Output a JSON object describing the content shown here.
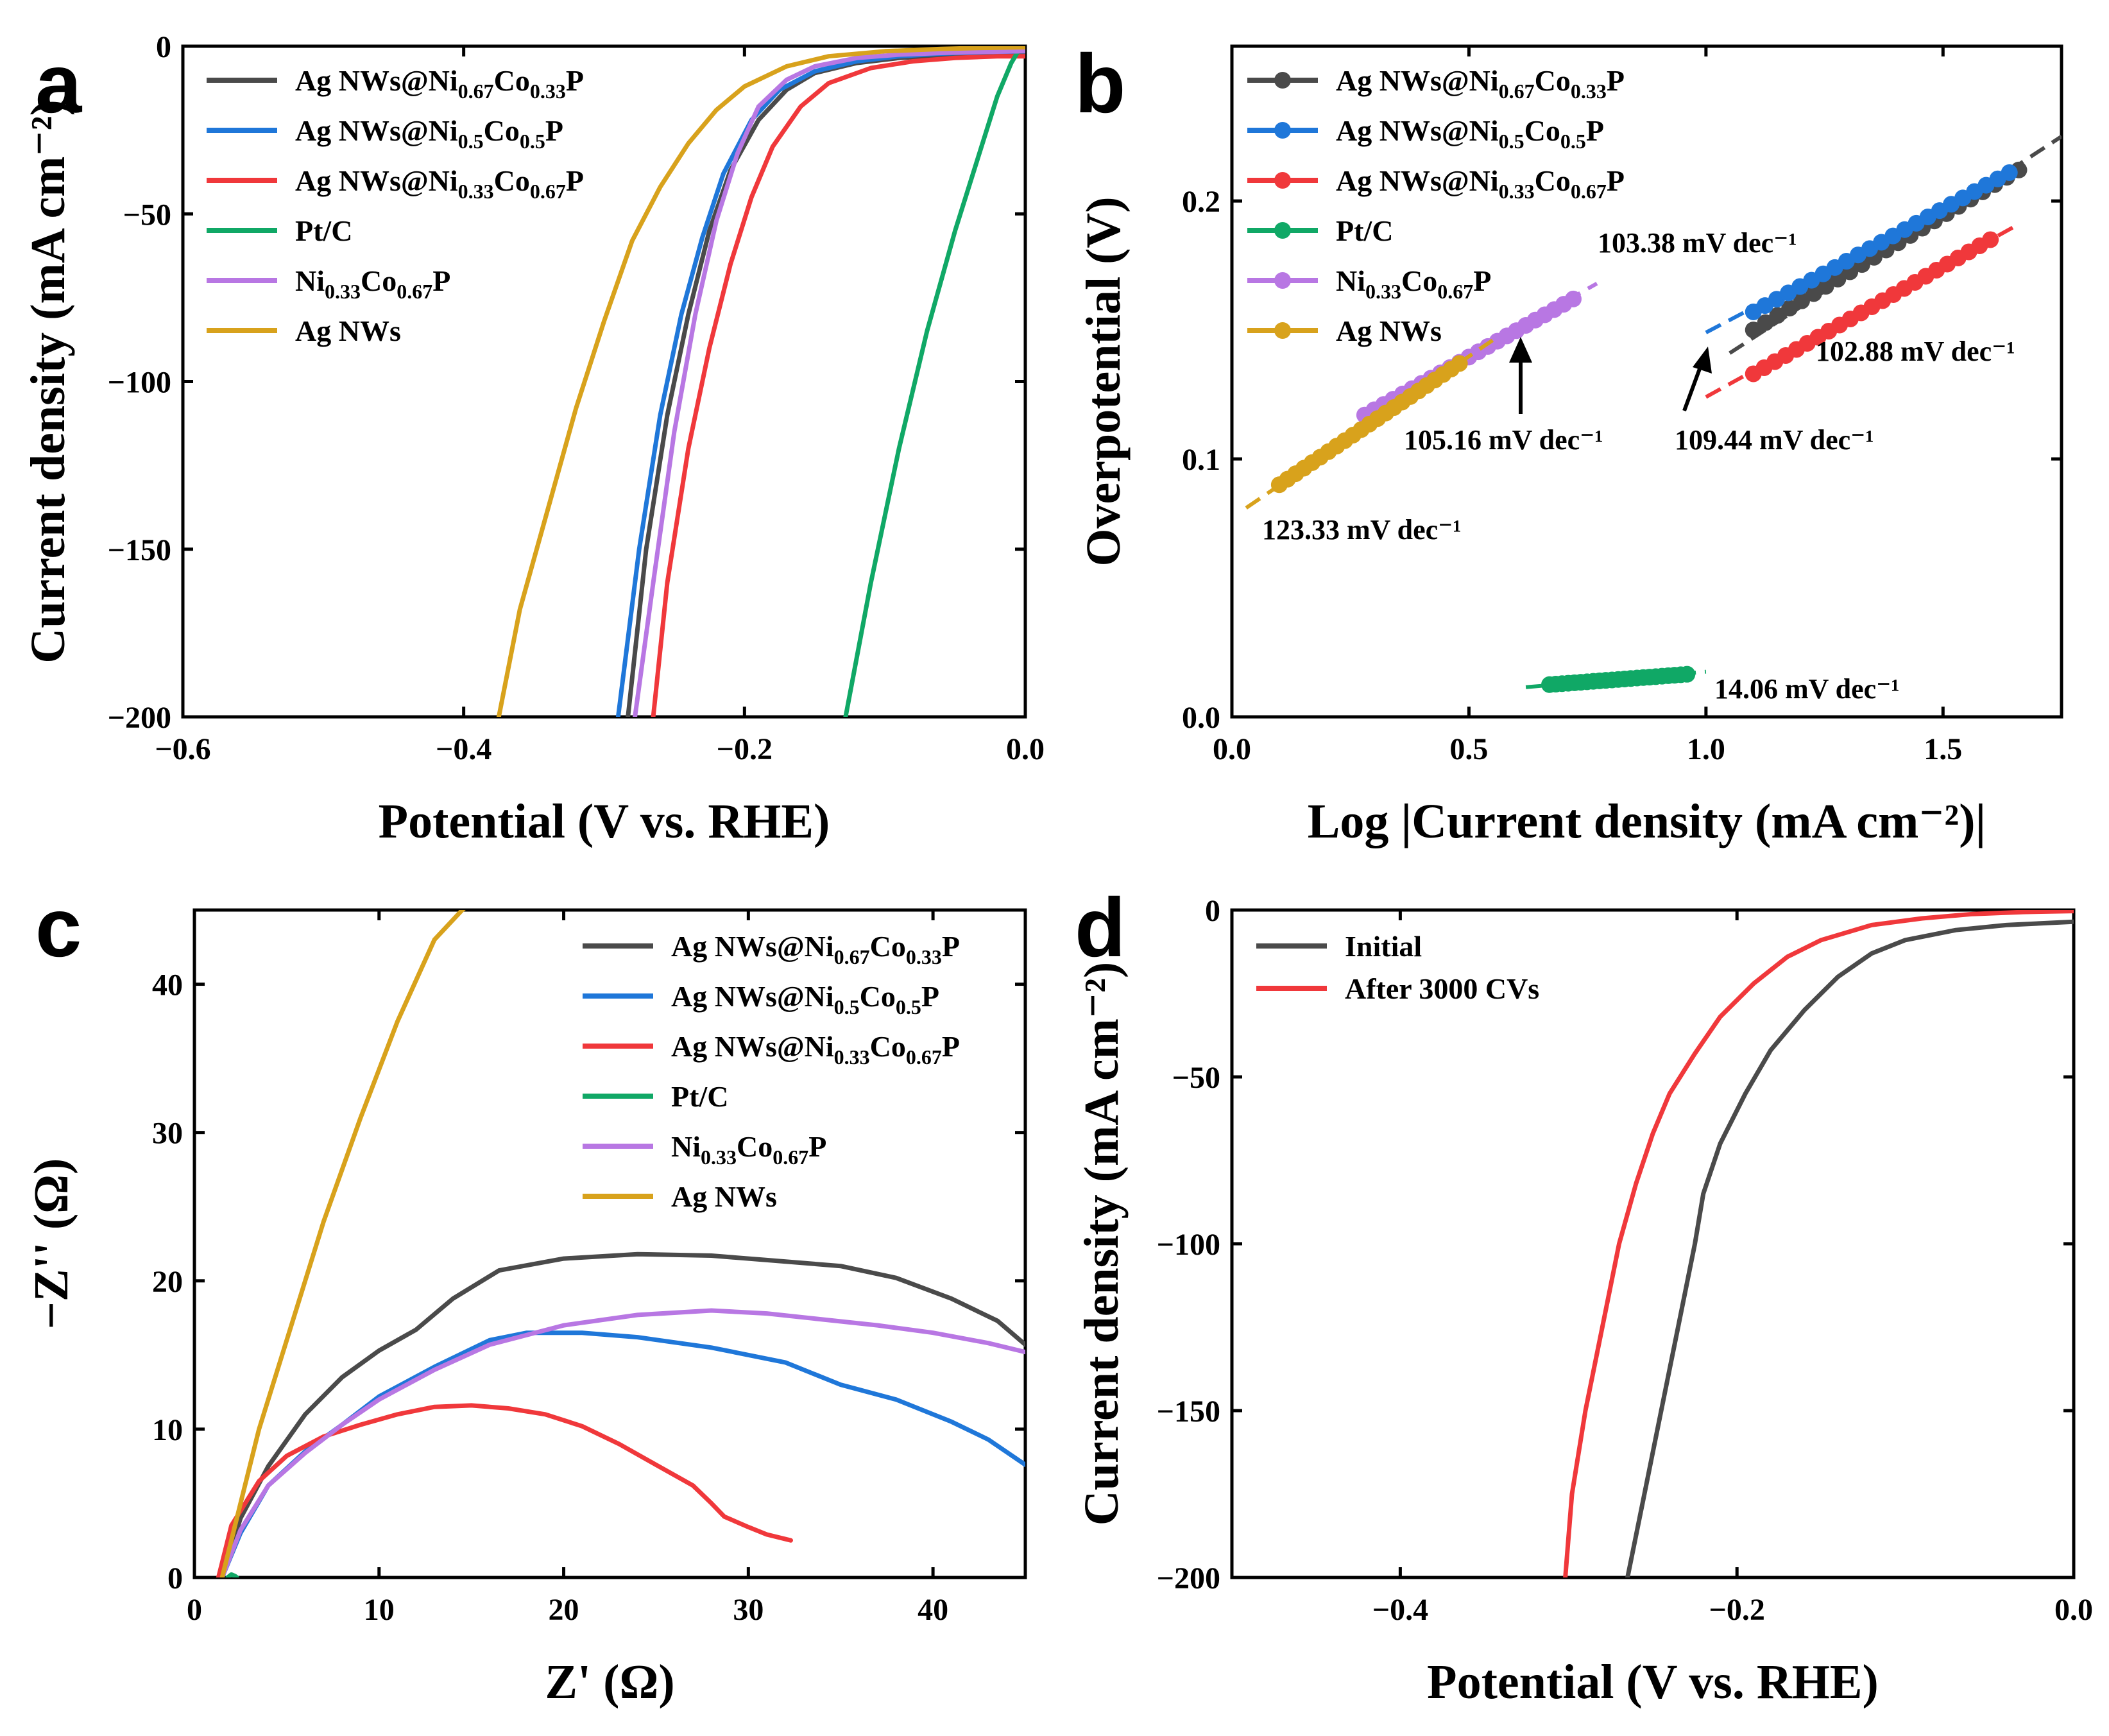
{
  "colors": {
    "dark": "#4a4a4a",
    "blue": "#1f77d9",
    "red": "#f0383b",
    "green": "#10a866",
    "purple": "#b877e3",
    "gold": "#d8a21c"
  },
  "chart_data": [
    {
      "panel": "a",
      "type": "line",
      "xlabel": "Potential (V vs. RHE)",
      "ylabel": "Current density (mA cm⁻²)",
      "xlim": [
        -0.6,
        0.0
      ],
      "ylim": [
        -200,
        0
      ],
      "xticks": [
        -0.6,
        -0.4,
        -0.2,
        0.0
      ],
      "xtick_labels": [
        "−0.6",
        "−0.4",
        "−0.2",
        "0.0"
      ],
      "yticks": [
        0,
        -50,
        -100,
        -150,
        -200
      ],
      "ytick_labels": [
        "0",
        "−50",
        "−100",
        "−150",
        "−200"
      ],
      "series": [
        {
          "name": "Ag NWs@Ni0.67Co0.33P",
          "color_key": "dark",
          "x": [
            -0.283,
            -0.27,
            -0.255,
            -0.24,
            -0.225,
            -0.21,
            -0.19,
            -0.17,
            -0.15,
            -0.12,
            -0.09,
            -0.06,
            -0.03,
            0.0
          ],
          "y": [
            -200,
            -150,
            -110,
            -80,
            -55,
            -37,
            -22,
            -13,
            -8,
            -5,
            -3.5,
            -2.8,
            -2.4,
            -2.0
          ]
        },
        {
          "name": "Ag NWs@Ni0.5Co0.5P",
          "color_key": "blue",
          "x": [
            -0.29,
            -0.275,
            -0.26,
            -0.245,
            -0.23,
            -0.215,
            -0.195,
            -0.175,
            -0.15,
            -0.12,
            -0.09,
            -0.06,
            -0.03,
            0.0
          ],
          "y": [
            -200,
            -150,
            -110,
            -80,
            -57,
            -38,
            -22,
            -13,
            -7.5,
            -4.5,
            -3,
            -2.2,
            -1.8,
            -1.5
          ]
        },
        {
          "name": "Ag NWs@Ni0.33Co0.67P",
          "color_key": "red",
          "x": [
            -0.265,
            -0.255,
            -0.24,
            -0.225,
            -0.21,
            -0.195,
            -0.18,
            -0.16,
            -0.14,
            -0.11,
            -0.08,
            -0.05,
            -0.02,
            0.0
          ],
          "y": [
            -200,
            -160,
            -120,
            -90,
            -65,
            -45,
            -30,
            -18,
            -11,
            -6.5,
            -4.5,
            -3.5,
            -3.0,
            -3.0
          ]
        },
        {
          "name": "Pt/C",
          "color_key": "green",
          "x": [
            -0.128,
            -0.11,
            -0.09,
            -0.07,
            -0.05,
            -0.035,
            -0.02,
            -0.01,
            -0.005,
            0.0
          ],
          "y": [
            -200,
            -160,
            -120,
            -85,
            -55,
            -35,
            -15,
            -5,
            -1.5,
            -0.5
          ]
        },
        {
          "name": "Ni0.33Co0.67P",
          "color_key": "purple",
          "x": [
            -0.278,
            -0.265,
            -0.25,
            -0.235,
            -0.22,
            -0.205,
            -0.19,
            -0.17,
            -0.15,
            -0.12,
            -0.09,
            -0.06,
            -0.03,
            0.0
          ],
          "y": [
            -200,
            -160,
            -115,
            -80,
            -52,
            -32,
            -18,
            -10,
            -6,
            -3.5,
            -2.5,
            -2.0,
            -1.7,
            -1.5
          ]
        },
        {
          "name": "Ag NWs",
          "color_key": "gold",
          "x": [
            -0.375,
            -0.36,
            -0.34,
            -0.32,
            -0.3,
            -0.28,
            -0.26,
            -0.24,
            -0.22,
            -0.2,
            -0.17,
            -0.14,
            -0.1,
            -0.06,
            -0.03,
            0.0
          ],
          "y": [
            -200,
            -168,
            -138,
            -108,
            -82,
            -58,
            -42,
            -29,
            -19,
            -12,
            -6,
            -3,
            -1.5,
            -0.8,
            -0.5,
            -0.3
          ]
        }
      ],
      "legend": [
        "Ag NWs@Ni0.67Co0.33P",
        "Ag NWs@Ni0.5Co0.5P",
        "Ag NWs@Ni0.33Co0.67P",
        "Pt/C",
        "Ni0.33Co0.67P",
        "Ag NWs"
      ]
    },
    {
      "panel": "b",
      "type": "scatter",
      "xlabel": "Log |Current density (mA cm⁻²)|",
      "ylabel": "Overpotential (V)",
      "xlim": [
        0.0,
        1.75
      ],
      "ylim": [
        0.0,
        0.26
      ],
      "xticks": [
        0.0,
        0.5,
        1.0,
        1.5
      ],
      "xtick_labels": [
        "0.0",
        "0.5",
        "1.0",
        "1.5"
      ],
      "yticks": [
        0.0,
        0.1,
        0.2
      ],
      "ytick_labels": [
        "0.0",
        "0.1",
        "0.2"
      ],
      "series": [
        {
          "name": "Ag NWs@Ni0.67Co0.33P",
          "color_key": "dark",
          "fit_x": [
            1.05,
            1.75
          ],
          "fit_y": [
            0.141,
            0.225
          ],
          "data_x": [
            1.1,
            1.66
          ],
          "data_y": [
            0.15,
            0.212
          ],
          "slope_label": "109.44 mV dec⁻¹"
        },
        {
          "name": "Ag NWs@Ni0.5Co0.5P",
          "color_key": "blue",
          "fit_x": [
            1.0,
            1.65
          ],
          "fit_y": [
            0.149,
            0.212
          ],
          "data_x": [
            1.1,
            1.64
          ],
          "data_y": [
            0.157,
            0.211
          ],
          "slope_label": "103.38 mV dec⁻¹"
        },
        {
          "name": "Ag NWs@Ni0.33Co0.67P",
          "color_key": "red",
          "fit_x": [
            1.0,
            1.65
          ],
          "fit_y": [
            0.124,
            0.19
          ],
          "data_x": [
            1.1,
            1.6
          ],
          "data_y": [
            0.133,
            0.185
          ],
          "slope_label": "102.88 mV dec⁻¹"
        },
        {
          "name": "Pt/C",
          "color_key": "green",
          "fit_x": [
            0.62,
            1.0
          ],
          "fit_y": [
            0.0115,
            0.0175
          ],
          "data_x": [
            0.67,
            0.96
          ],
          "data_y": [
            0.0125,
            0.0165
          ],
          "slope_label": "14.06 mV dec⁻¹"
        },
        {
          "name": "Ni0.33Co0.67P",
          "color_key": "purple",
          "fit_x": [
            0.28,
            0.77
          ],
          "fit_y": [
            0.117,
            0.168
          ],
          "data_x": [
            0.28,
            0.72
          ],
          "data_y": [
            0.117,
            0.162
          ],
          "slope_label": "105.16 mV dec⁻¹"
        },
        {
          "name": "Ag NWs",
          "color_key": "gold",
          "fit_x": [
            0.03,
            0.55
          ],
          "fit_y": [
            0.081,
            0.146
          ],
          "data_x": [
            0.1,
            0.48
          ],
          "data_y": [
            0.09,
            0.137
          ],
          "slope_label": "123.33 mV dec⁻¹"
        }
      ],
      "legend": [
        "Ag NWs@Ni0.67Co0.33P",
        "Ag NWs@Ni0.5Co0.5P",
        "Ag NWs@Ni0.33Co0.67P",
        "Pt/C",
        "Ni0.33Co0.67P",
        "Ag NWs"
      ],
      "annotations": [
        "103.38 mV dec⁻¹",
        "102.88 mV dec⁻¹",
        "109.44 mV dec⁻¹",
        "105.16 mV dec⁻¹",
        "123.33 mV dec⁻¹",
        "14.06 mV dec⁻¹"
      ]
    },
    {
      "panel": "c",
      "type": "line",
      "xlabel": "Z' (Ω)",
      "ylabel": "−Z'' (Ω)",
      "xlim": [
        0,
        45
      ],
      "ylim": [
        0,
        45
      ],
      "xticks": [
        0,
        10,
        20,
        30,
        40
      ],
      "xtick_labels": [
        "0",
        "10",
        "20",
        "30",
        "40"
      ],
      "yticks": [
        0,
        10,
        20,
        30,
        40
      ],
      "ytick_labels": [
        "0",
        "10",
        "20",
        "30",
        "40"
      ],
      "series": [
        {
          "name": "Ag NWs@Ni0.67Co0.33P",
          "color_key": "dark",
          "x": [
            1.5,
            2.5,
            4,
            6,
            8,
            10,
            12,
            14,
            16.5,
            20,
            24,
            28,
            31,
            35,
            38,
            41,
            43.5,
            45
          ],
          "y": [
            0,
            4,
            7.5,
            11,
            13.5,
            15.3,
            16.7,
            18.8,
            20.7,
            21.5,
            21.8,
            21.7,
            21.4,
            21,
            20.2,
            18.8,
            17.3,
            15.7
          ]
        },
        {
          "name": "Ag NWs@Ni0.5Co0.5P",
          "color_key": "blue",
          "x": [
            1.5,
            2.5,
            4,
            6,
            8,
            10,
            13,
            16,
            18,
            21,
            24,
            28,
            32,
            35,
            38,
            41,
            43,
            45
          ],
          "y": [
            0,
            3,
            6.2,
            8.5,
            10.3,
            12.2,
            14.2,
            16,
            16.5,
            16.5,
            16.2,
            15.5,
            14.5,
            13,
            12,
            10.5,
            9.3,
            7.6
          ]
        },
        {
          "name": "Ag NWs@Ni0.33Co0.67P",
          "color_key": "red",
          "x": [
            1.3,
            2,
            3.5,
            5,
            7,
            9,
            11,
            13,
            15,
            17,
            19,
            21,
            23,
            25,
            27,
            28,
            28.7,
            30,
            31,
            32.3
          ],
          "y": [
            0,
            3.5,
            6.5,
            8.2,
            9.5,
            10.3,
            11,
            11.5,
            11.6,
            11.4,
            11,
            10.2,
            9,
            7.6,
            6.2,
            5,
            4.1,
            3.4,
            2.9,
            2.5
          ]
        },
        {
          "name": "Pt/C",
          "color_key": "green",
          "x": [
            1.8,
            2.0,
            2.2,
            2.3
          ],
          "y": [
            0,
            0.2,
            0.1,
            0
          ]
        },
        {
          "name": "Ni0.33Co0.67P",
          "color_key": "purple",
          "x": [
            1.5,
            2.5,
            4,
            6,
            8,
            10,
            13,
            16,
            20,
            24,
            28,
            31,
            34,
            37,
            40,
            43,
            45
          ],
          "y": [
            0,
            3.2,
            6.2,
            8.4,
            10.3,
            12,
            14,
            15.7,
            17,
            17.7,
            18,
            17.8,
            17.4,
            17,
            16.5,
            15.8,
            15.2
          ]
        },
        {
          "name": "Ag NWs",
          "color_key": "gold",
          "x": [
            1.5,
            2.5,
            3.5,
            5,
            7,
            9,
            11,
            13,
            14.5,
            15
          ],
          "y": [
            0,
            5,
            10,
            16,
            24,
            31,
            37.5,
            43,
            45,
            45.5
          ]
        }
      ],
      "legend": [
        "Ag NWs@Ni0.67Co0.33P",
        "Ag NWs@Ni0.5Co0.5P",
        "Ag NWs@Ni0.33Co0.67P",
        "Pt/C",
        "Ni0.33Co0.67P",
        "Ag NWs"
      ]
    },
    {
      "panel": "d",
      "type": "line",
      "xlabel": "Potential (V vs. RHE)",
      "ylabel": "Current density (mA cm⁻²)",
      "xlim": [
        -0.5,
        0.0
      ],
      "ylim": [
        -200,
        0
      ],
      "xticks": [
        -0.4,
        -0.2,
        0.0
      ],
      "xtick_labels": [
        "−0.4",
        "−0.2",
        "0.0"
      ],
      "yticks": [
        0,
        -50,
        -100,
        -150,
        -200
      ],
      "ytick_labels": [
        "0",
        "−50",
        "−100",
        "−150",
        "−200"
      ],
      "series": [
        {
          "name": "Initial",
          "color_key": "dark",
          "x": [
            -0.265,
            -0.255,
            -0.245,
            -0.235,
            -0.225,
            -0.22,
            -0.21,
            -0.195,
            -0.18,
            -0.16,
            -0.14,
            -0.12,
            -0.1,
            -0.07,
            -0.04,
            0.0
          ],
          "y": [
            -200,
            -175,
            -150,
            -125,
            -100,
            -85,
            -70,
            -55,
            -42,
            -30,
            -20,
            -13,
            -9,
            -6,
            -4.5,
            -3.5
          ]
        },
        {
          "name": "After 3000 CVs",
          "color_key": "red",
          "x": [
            -0.302,
            -0.298,
            -0.29,
            -0.28,
            -0.27,
            -0.26,
            -0.25,
            -0.24,
            -0.225,
            -0.21,
            -0.19,
            -0.17,
            -0.15,
            -0.12,
            -0.09,
            -0.06,
            -0.03,
            0.0
          ],
          "y": [
            -200,
            -175,
            -150,
            -125,
            -100,
            -82,
            -67,
            -55,
            -43,
            -32,
            -22,
            -14,
            -9,
            -4.5,
            -2.5,
            -1.2,
            -0.6,
            -0.3
          ]
        }
      ],
      "legend": [
        "Initial",
        "After 3000 CVs"
      ]
    }
  ],
  "panels": {
    "a": {
      "letter": "a"
    },
    "b": {
      "letter": "b"
    },
    "c": {
      "letter": "c"
    },
    "d": {
      "letter": "d"
    }
  },
  "legend_a": [
    {
      "pre": "Ag NWs@Ni",
      "s1": "0.67",
      "mid": "Co",
      "s2": "0.33",
      "post": "P"
    },
    {
      "pre": "Ag NWs@Ni",
      "s1": "0.5",
      "mid": "Co",
      "s2": "0.5",
      "post": "P"
    },
    {
      "pre": "Ag NWs@Ni",
      "s1": "0.33",
      "mid": "Co",
      "s2": "0.67",
      "post": "P"
    },
    {
      "pre": "Pt/C",
      "s1": "",
      "mid": "",
      "s2": "",
      "post": ""
    },
    {
      "pre": "Ni",
      "s1": "0.33",
      "mid": "Co",
      "s2": "0.67",
      "post": "P"
    },
    {
      "pre": "Ag NWs",
      "s1": "",
      "mid": "",
      "s2": "",
      "post": ""
    }
  ],
  "legend_d": [
    {
      "pre": "Initial",
      "s1": "",
      "mid": "",
      "s2": "",
      "post": ""
    },
    {
      "pre": "After 3000 CVs",
      "s1": "",
      "mid": "",
      "s2": "",
      "post": ""
    }
  ]
}
